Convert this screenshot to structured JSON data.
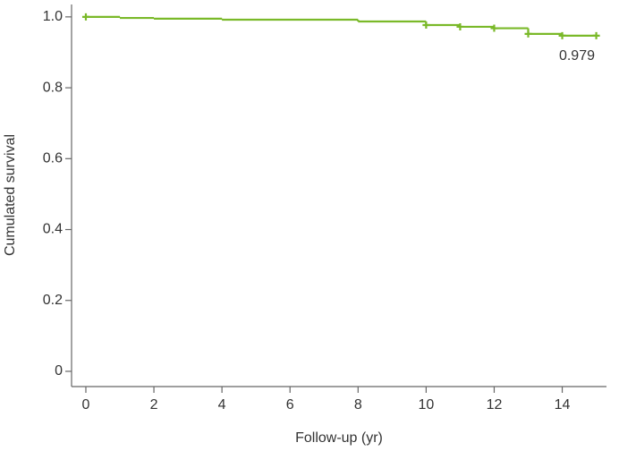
{
  "chart_data": {
    "type": "km",
    "x_label": "Follow-up (yr)",
    "y_label": "Cumulated survival",
    "x": [
      0,
      1,
      2,
      4,
      8,
      10,
      11,
      12,
      13,
      14,
      15
    ],
    "values": [
      1.0,
      0.997,
      0.995,
      0.992,
      0.987,
      0.977,
      0.972,
      0.968,
      0.952,
      0.947,
      0.947
    ],
    "censored": {
      "x": [
        0,
        10,
        11,
        12,
        13,
        14,
        15
      ],
      "values": [
        1.0,
        0.977,
        0.972,
        0.968,
        0.952,
        0.947,
        0.947
      ]
    },
    "color": "#7ab929",
    "annotation": "0.979",
    "xlim": [
      -0.42,
      15.3
    ],
    "xticks": [
      0,
      2,
      4,
      6,
      8,
      10,
      12,
      14
    ],
    "ylim": [
      -0.043,
      1.035
    ],
    "yticks": [
      0,
      0.2,
      0.4,
      0.6,
      0.8,
      {
        "value": 1,
        "label": "1.0"
      }
    ]
  }
}
